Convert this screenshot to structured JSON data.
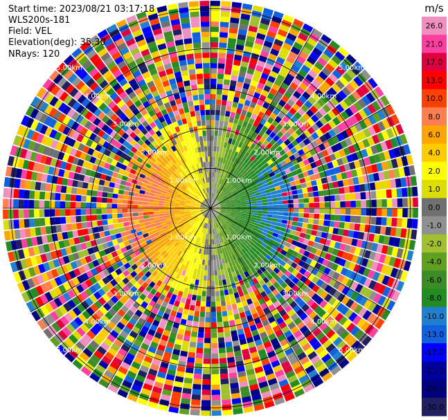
{
  "header": {
    "start_time": "Start time: 2023/08/21 03:17:18",
    "station": "WLS200s-181",
    "field": "Field: VEL",
    "elevation": "Elevation(deg): 35.30",
    "nrays": "NRays: 120"
  },
  "chart_data": {
    "type": "heatmap",
    "subtype": "polar-ppi",
    "field": "VEL",
    "units": "m/s",
    "nrays": 120,
    "elevation_deg": 35.3,
    "range_rings_km": [
      1.0,
      2.0,
      3.0,
      4.0,
      5.0
    ],
    "ring_labels": [
      "1.00km",
      "2.00km",
      "3.00km",
      "4.00km",
      "5.00km"
    ],
    "max_range_km": 5.2,
    "spoke_angles_deg": [
      0,
      30,
      60,
      90,
      120,
      150,
      180,
      210,
      240,
      270,
      300,
      330
    ],
    "pattern": "coherent wind field (positive toward west, negative toward east) within ~2.4 km, random noise beyond",
    "colorbar": {
      "ticks": [
        "26.0",
        "21.0",
        "17.0",
        "13.0",
        "10.0",
        "8.0",
        "6.0",
        "4.0",
        "2.0",
        "1.0",
        "0.0",
        "-1.0",
        "-2.0",
        "-4.0",
        "-6.0",
        "-8.0",
        "-10.0",
        "-13.0",
        "-17.0",
        "-21.0",
        "-26.0",
        "-30.0"
      ],
      "colors": [
        "#f090c0",
        "#ff40a0",
        "#e00040",
        "#ff0000",
        "#ff4000",
        "#ff7f50",
        "#ffa500",
        "#ffcc00",
        "#ffff00",
        "#dddd00",
        "#707070",
        "#909090",
        "#a0c030",
        "#60a020",
        "#3c8c28",
        "#228b22",
        "#2080d0",
        "#1060e0",
        "#0000ff",
        "#0000a0",
        "#000080",
        "#202060"
      ]
    }
  }
}
